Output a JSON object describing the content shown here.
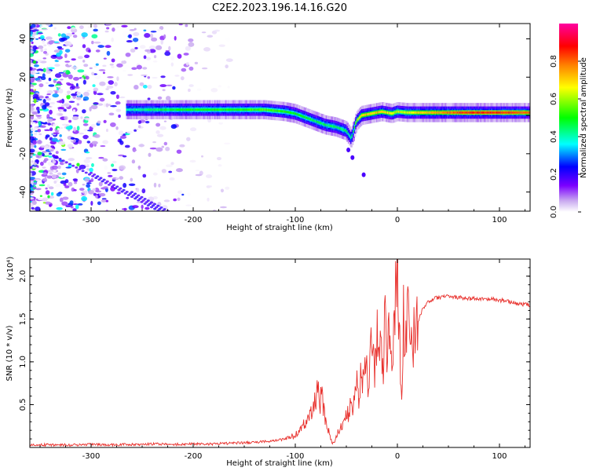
{
  "figure": {
    "title": "C2E2.2023.196.14.16.G20"
  },
  "chart_data": [
    {
      "type": "heatmap",
      "title": "",
      "xlabel": "Height of straight line (km)",
      "ylabel": "Frequency (Hz)",
      "xlim": [
        -360,
        130
      ],
      "ylim": [
        -50,
        48
      ],
      "xticks": [
        -300,
        -200,
        -100,
        0,
        100
      ],
      "xtick_labels": [
        "-300",
        "-200",
        "-100",
        "0",
        "100"
      ],
      "yticks": [
        -40,
        -20,
        0,
        20,
        40
      ],
      "ytick_labels": [
        "-40",
        "-20",
        "0",
        "20",
        "40"
      ],
      "grid": false,
      "colorbar": {
        "label": "Normalized spectral amplitude",
        "range": [
          0,
          1
        ],
        "ticks": [
          0.0,
          0.2,
          0.4,
          0.6,
          0.8
        ],
        "tick_labels": [
          "0.0",
          "0.2",
          "0.4",
          "0.6",
          "0.8"
        ],
        "colors": [
          "#ffffff",
          "#c8a8f0",
          "#7b00ff",
          "#0000ff",
          "#00ffff",
          "#00ff00",
          "#ffff00",
          "#ff8000",
          "#ff0000",
          "#ff00a0"
        ]
      },
      "ridge": {
        "x": [
          -260,
          -240,
          -200,
          -160,
          -130,
          -110,
          -100,
          -90,
          -80,
          -70,
          -60,
          -50,
          -45,
          -40,
          -35,
          -25,
          -15,
          -5,
          0,
          10,
          40,
          70,
          100,
          130
        ],
        "y": [
          3,
          3,
          3,
          3,
          3,
          2,
          1,
          -1,
          -3,
          -5,
          -6,
          -8,
          -12,
          -3,
          0,
          1,
          2,
          1,
          2,
          1.5,
          1.5,
          1.5,
          1.5,
          1.5
        ],
        "peak_amplitude": [
          0.4,
          0.45,
          0.5,
          0.5,
          0.55,
          0.5,
          0.5,
          0.5,
          0.45,
          0.45,
          0.45,
          0.45,
          0.4,
          0.6,
          0.7,
          0.7,
          0.7,
          0.65,
          0.6,
          0.65,
          0.75,
          0.85,
          0.85,
          0.8
        ]
      }
    },
    {
      "type": "line",
      "title": "",
      "xlabel": "Height of straight line (km)",
      "ylabel": "SNR (10 * v/v)",
      "y_multiplier": "(x10⁴)",
      "xlim": [
        -360,
        130
      ],
      "ylim": [
        0,
        2.2
      ],
      "xticks": [
        -300,
        -200,
        -100,
        0,
        100
      ],
      "xtick_labels": [
        "-300",
        "-200",
        "-100",
        "0",
        "100"
      ],
      "yticks": [
        0.5,
        1.0,
        1.5,
        2.0
      ],
      "ytick_labels": [
        "0.5",
        "1.0",
        "1.5",
        "2.0"
      ],
      "grid": false,
      "series": [
        {
          "color": "#e8302c",
          "x": [
            -360,
            -340,
            -320,
            -300,
            -280,
            -260,
            -240,
            -220,
            -200,
            -180,
            -160,
            -140,
            -120,
            -110,
            -100,
            -95,
            -90,
            -85,
            -80,
            -78,
            -76,
            -74,
            -72,
            -70,
            -68,
            -66,
            -64,
            -62,
            -60,
            -58,
            -56,
            -54,
            -52,
            -50,
            -48,
            -46,
            -44,
            -42,
            -40,
            -38,
            -36,
            -34,
            -32,
            -30,
            -28,
            -26,
            -24,
            -22,
            -20,
            -18,
            -16,
            -14,
            -12,
            -10,
            -8,
            -6,
            -4,
            -2,
            0,
            2,
            4,
            6,
            8,
            10,
            12,
            14,
            16,
            18,
            20,
            24,
            28,
            32,
            36,
            40,
            50,
            60,
            70,
            80,
            90,
            100,
            110,
            120,
            130
          ],
          "y": [
            0.03,
            0.03,
            0.03,
            0.035,
            0.03,
            0.035,
            0.04,
            0.035,
            0.04,
            0.04,
            0.05,
            0.06,
            0.08,
            0.1,
            0.14,
            0.22,
            0.3,
            0.4,
            0.6,
            0.66,
            0.5,
            0.62,
            0.42,
            0.3,
            0.22,
            0.12,
            0.05,
            0.06,
            0.12,
            0.18,
            0.25,
            0.22,
            0.3,
            0.45,
            0.35,
            0.5,
            0.4,
            0.6,
            0.75,
            0.55,
            0.85,
            0.7,
            1.0,
            0.9,
            0.75,
            1.45,
            1.0,
            0.85,
            1.3,
            1.0,
            1.15,
            0.9,
            1.6,
            1.1,
            1.4,
            1.0,
            1.25,
            1.8,
            2.2,
            1.3,
            0.45,
            1.5,
            1.1,
            1.6,
            1.2,
            1.2,
            1.3,
            1.45,
            1.45,
            1.6,
            1.68,
            1.72,
            1.74,
            1.75,
            1.76,
            1.75,
            1.74,
            1.73,
            1.74,
            1.72,
            1.7,
            1.68,
            1.66
          ]
        }
      ]
    }
  ]
}
